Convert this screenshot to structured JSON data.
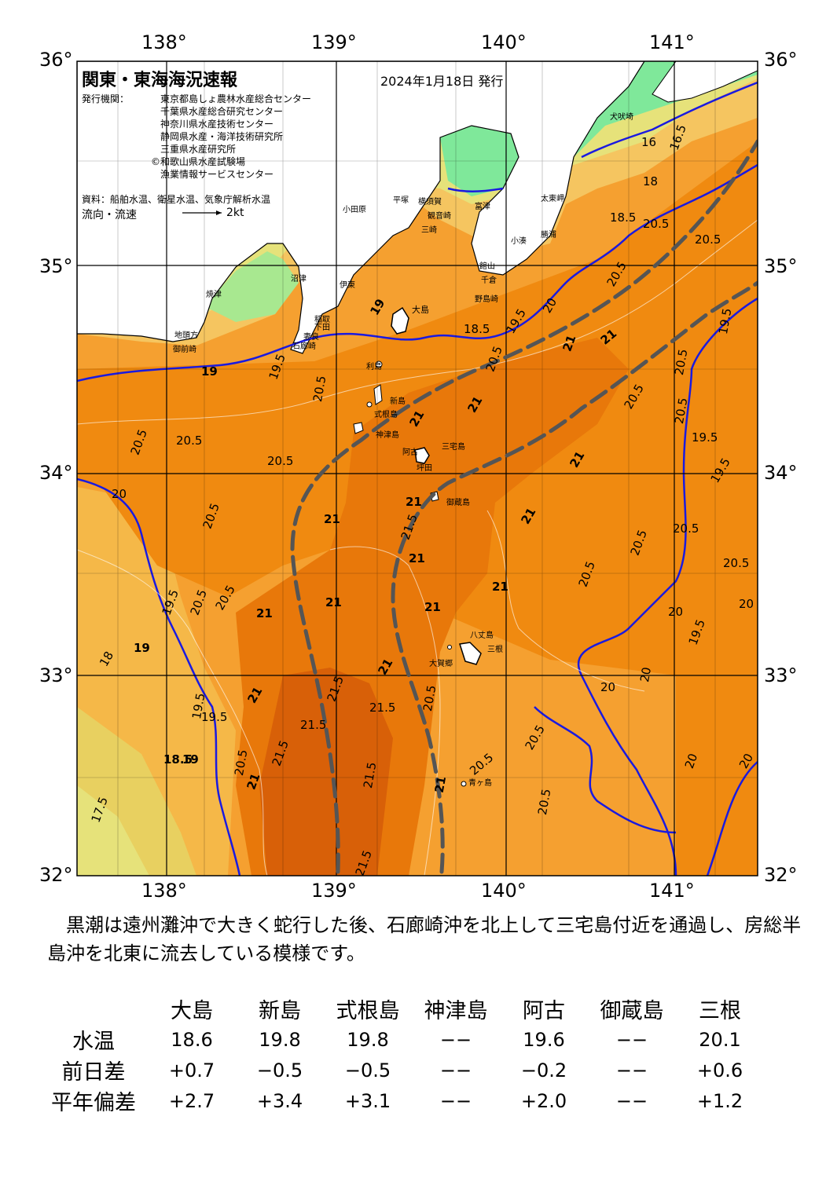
{
  "header": {
    "title": "関東・東海海況速報",
    "date": "2024年1月18日 発行",
    "publisher_label": "発行機関：",
    "publishers": [
      "東京都島しょ農林水産総合センター",
      "千葉県水産総合研究センター",
      "神奈川県水産技術センター",
      "静岡県水産・海洋技術研究所",
      "三重県水産研究所",
      "©和歌山県水産試験場",
      "漁業情報サービスセンター"
    ],
    "source": "資料：船舶水温、衛星水温、気象庁解析水温",
    "flow_label": "流向・流速",
    "flow_scale": "2kt"
  },
  "axes": {
    "lon_labels": [
      "138°",
      "139°",
      "140°",
      "141°"
    ],
    "lat_labels": [
      "36°",
      "35°",
      "34°",
      "33°",
      "32°"
    ]
  },
  "places": [
    {
      "id": "oshima",
      "name": "大島"
    },
    {
      "id": "toshima",
      "name": "利島"
    },
    {
      "id": "niijima",
      "name": "新島"
    },
    {
      "id": "shikine",
      "name": "式根島"
    },
    {
      "id": "kozu",
      "name": "神津島"
    },
    {
      "id": "miyake",
      "name": "三宅島"
    },
    {
      "id": "ako",
      "name": "阿古"
    },
    {
      "id": "tsubota",
      "name": "坪田"
    },
    {
      "id": "mikura",
      "name": "御蔵島"
    },
    {
      "id": "hachijo",
      "name": "八丈島"
    },
    {
      "id": "mitsune",
      "name": "三根"
    },
    {
      "id": "okago",
      "name": "大賀郷"
    },
    {
      "id": "aogashima",
      "name": "青ヶ島"
    },
    {
      "id": "inubo",
      "name": "犬吠埼"
    },
    {
      "id": "taito",
      "name": "太東岬"
    },
    {
      "id": "katsuura",
      "name": "勝浦"
    },
    {
      "id": "kominato",
      "name": "小湊"
    },
    {
      "id": "tateyama",
      "name": "館山"
    },
    {
      "id": "chikura",
      "name": "千倉"
    },
    {
      "id": "nojima",
      "name": "野島崎"
    },
    {
      "id": "futtsu",
      "name": "富津"
    },
    {
      "id": "kannonzaki",
      "name": "観音崎"
    },
    {
      "id": "misaki",
      "name": "三崎"
    },
    {
      "id": "hiratsuka",
      "name": "平塚"
    },
    {
      "id": "yokosuka",
      "name": "横須賀"
    },
    {
      "id": "odawara",
      "name": "小田原"
    },
    {
      "id": "numazu",
      "name": "沼津"
    },
    {
      "id": "ito",
      "name": "伊東"
    },
    {
      "id": "inatori",
      "name": "稲取"
    },
    {
      "id": "shimoda",
      "name": "下田"
    },
    {
      "id": "mera",
      "name": "妻良"
    },
    {
      "id": "irozaki",
      "name": "石廊崎"
    },
    {
      "id": "yaizu",
      "name": "焼津"
    },
    {
      "id": "jitokata",
      "name": "地頭方"
    },
    {
      "id": "omaezaki",
      "name": "御前崎"
    }
  ],
  "contours": {
    "labels": [
      "16",
      "16.5",
      "18",
      "18.5",
      "19",
      "19.5",
      "20",
      "20.5",
      "21",
      "21.5",
      "17.5"
    ]
  },
  "description": "黒潮は遠州灘沖で大きく蛇行した後、石廊崎沖を北上して三宅島付近を通過し、房総半島沖を北東に流去している模様です。",
  "table": {
    "columns": [
      "大島",
      "新島",
      "式根島",
      "神津島",
      "阿古",
      "御蔵島",
      "三根"
    ],
    "rows": [
      {
        "label": "水温",
        "values": [
          "18.6",
          "19.8",
          "19.8",
          "−−",
          "19.6",
          "−−",
          "20.1"
        ]
      },
      {
        "label": "前日差",
        "values": [
          "+0.7",
          "−0.5",
          "−0.5",
          "−−",
          "−0.2",
          "−−",
          "+0.6"
        ]
      },
      {
        "label": "平年偏差",
        "values": [
          "+2.7",
          "+3.4",
          "+3.1",
          "−−",
          "+2.0",
          "−−",
          "+1.2"
        ]
      }
    ]
  },
  "colors": {
    "land": "#ffffff",
    "temp_16": "#7fe89a",
    "temp_17_5": "#d9e870",
    "temp_18_5": "#f5c560",
    "temp_19_5": "#f5a030",
    "temp_20_5": "#f08a10",
    "temp_21": "#e8780a",
    "temp_21_5": "#d86008",
    "isotherm": "#1a1ae0",
    "kuroshio_axis": "#555555"
  }
}
